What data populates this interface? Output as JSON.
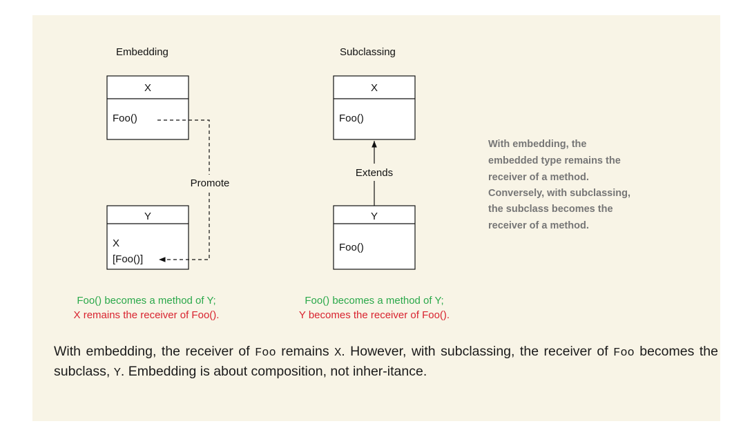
{
  "embedding": {
    "heading": "Embedding",
    "x_title": "X",
    "x_method": "Foo()",
    "y_title": "Y",
    "y_field": "X",
    "y_method": "[Foo()]",
    "promote_label": "Promote",
    "note_line1": "Foo() becomes a method of Y;",
    "note_line2": "X remains the receiver of Foo()."
  },
  "subclassing": {
    "heading": "Subclassing",
    "x_title": "X",
    "x_method": "Foo()",
    "y_title": "Y",
    "y_method": "Foo()",
    "extends_label": "Extends",
    "note_line1": "Foo() becomes a method of Y;",
    "note_line2": "Y becomes the receiver of Foo()."
  },
  "side_note": [
    "With embedding, the",
    "embedded type remains the",
    "receiver of a method.",
    "Conversely, with subclassing,",
    "the subclass becomes the",
    "receiver of a method."
  ],
  "caption": {
    "p1": "With embedding, the receiver of ",
    "c1": "Foo",
    "p2": " remains ",
    "c2": "X",
    "p3": ". However, with subclassing, the receiver of ",
    "c3": "Foo",
    "p4": " becomes the subclass, ",
    "c4": "Y",
    "p5": ". Embedding is about composition, not inher-itance."
  },
  "colors": {
    "background": "#f8f4e6",
    "green": "#2aa84a",
    "red": "#d8232f",
    "note": "#767676"
  }
}
